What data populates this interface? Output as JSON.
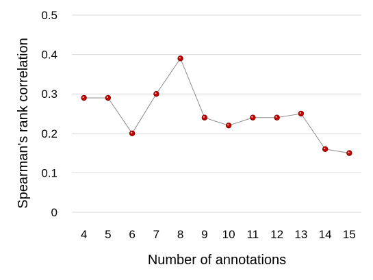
{
  "chart_data": {
    "type": "line",
    "title": "",
    "xlabel": "Number of annotations",
    "ylabel": "Spearman's rank correlation",
    "categories": [
      "4",
      "5",
      "6",
      "7",
      "8",
      "9",
      "10",
      "11",
      "12",
      "13",
      "14",
      "15"
    ],
    "series": [
      {
        "values": [
          0.29,
          0.29,
          0.2,
          0.3,
          0.39,
          0.24,
          0.22,
          0.24,
          0.24,
          0.25,
          0.16,
          0.15
        ],
        "line_color": "#8c8c8c",
        "marker_color": "#c00000"
      }
    ],
    "ylim": [
      0,
      0.5
    ],
    "yticks": [
      "0",
      "0.1",
      "0.2",
      "0.3",
      "0.4",
      "0.5"
    ],
    "grid": true,
    "legend": "none"
  }
}
